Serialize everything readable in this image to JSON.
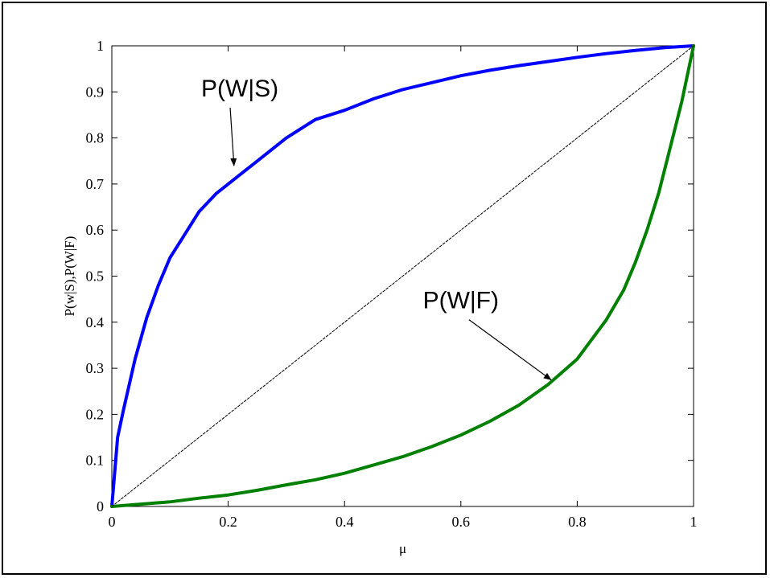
{
  "chart_data": {
    "type": "line",
    "title": "",
    "xlabel": "μ",
    "ylabel": "P(w|S),P(W|F)",
    "xlim": [
      0,
      1
    ],
    "ylim": [
      0,
      1
    ],
    "x_ticks": [
      "0",
      "0.2",
      "0.4",
      "0.6",
      "0.8",
      "1"
    ],
    "y_ticks": [
      "0",
      "0.1",
      "0.2",
      "0.3",
      "0.4",
      "0.5",
      "0.6",
      "0.7",
      "0.8",
      "0.9",
      "1"
    ],
    "grid": false,
    "legend": "none",
    "series": [
      {
        "name": "P(W|S)",
        "color": "#0000ff",
        "x": [
          0,
          0.01,
          0.02,
          0.04,
          0.06,
          0.08,
          0.1,
          0.12,
          0.15,
          0.18,
          0.2,
          0.22,
          0.25,
          0.3,
          0.35,
          0.4,
          0.45,
          0.5,
          0.55,
          0.6,
          0.65,
          0.7,
          0.75,
          0.8,
          0.85,
          0.9,
          0.95,
          1.0
        ],
        "y": [
          0,
          0.15,
          0.21,
          0.32,
          0.41,
          0.48,
          0.54,
          0.58,
          0.64,
          0.68,
          0.7,
          0.72,
          0.75,
          0.8,
          0.84,
          0.86,
          0.885,
          0.905,
          0.92,
          0.935,
          0.947,
          0.957,
          0.966,
          0.975,
          0.983,
          0.99,
          0.996,
          1.0
        ]
      },
      {
        "name": "P(W|F)",
        "color": "#008000",
        "x": [
          0,
          0.05,
          0.1,
          0.15,
          0.2,
          0.25,
          0.3,
          0.35,
          0.4,
          0.45,
          0.5,
          0.55,
          0.6,
          0.65,
          0.7,
          0.75,
          0.8,
          0.85,
          0.88,
          0.9,
          0.92,
          0.94,
          0.96,
          0.98,
          1.0
        ],
        "y": [
          0,
          0.005,
          0.01,
          0.018,
          0.025,
          0.035,
          0.047,
          0.058,
          0.072,
          0.09,
          0.108,
          0.13,
          0.155,
          0.185,
          0.22,
          0.265,
          0.32,
          0.405,
          0.47,
          0.53,
          0.6,
          0.68,
          0.78,
          0.88,
          1.0
        ]
      },
      {
        "name": "",
        "color": "#000000",
        "style": "dashed",
        "x": [
          0,
          1
        ],
        "y": [
          0,
          1
        ]
      }
    ],
    "annotations": [
      {
        "text": "P(W|S)",
        "x": 0.22,
        "y": 0.89,
        "arrow_to": [
          0.21,
          0.74
        ]
      },
      {
        "text": "P(W|F)",
        "x": 0.6,
        "y": 0.43,
        "arrow_to": [
          0.755,
          0.275
        ]
      }
    ]
  }
}
